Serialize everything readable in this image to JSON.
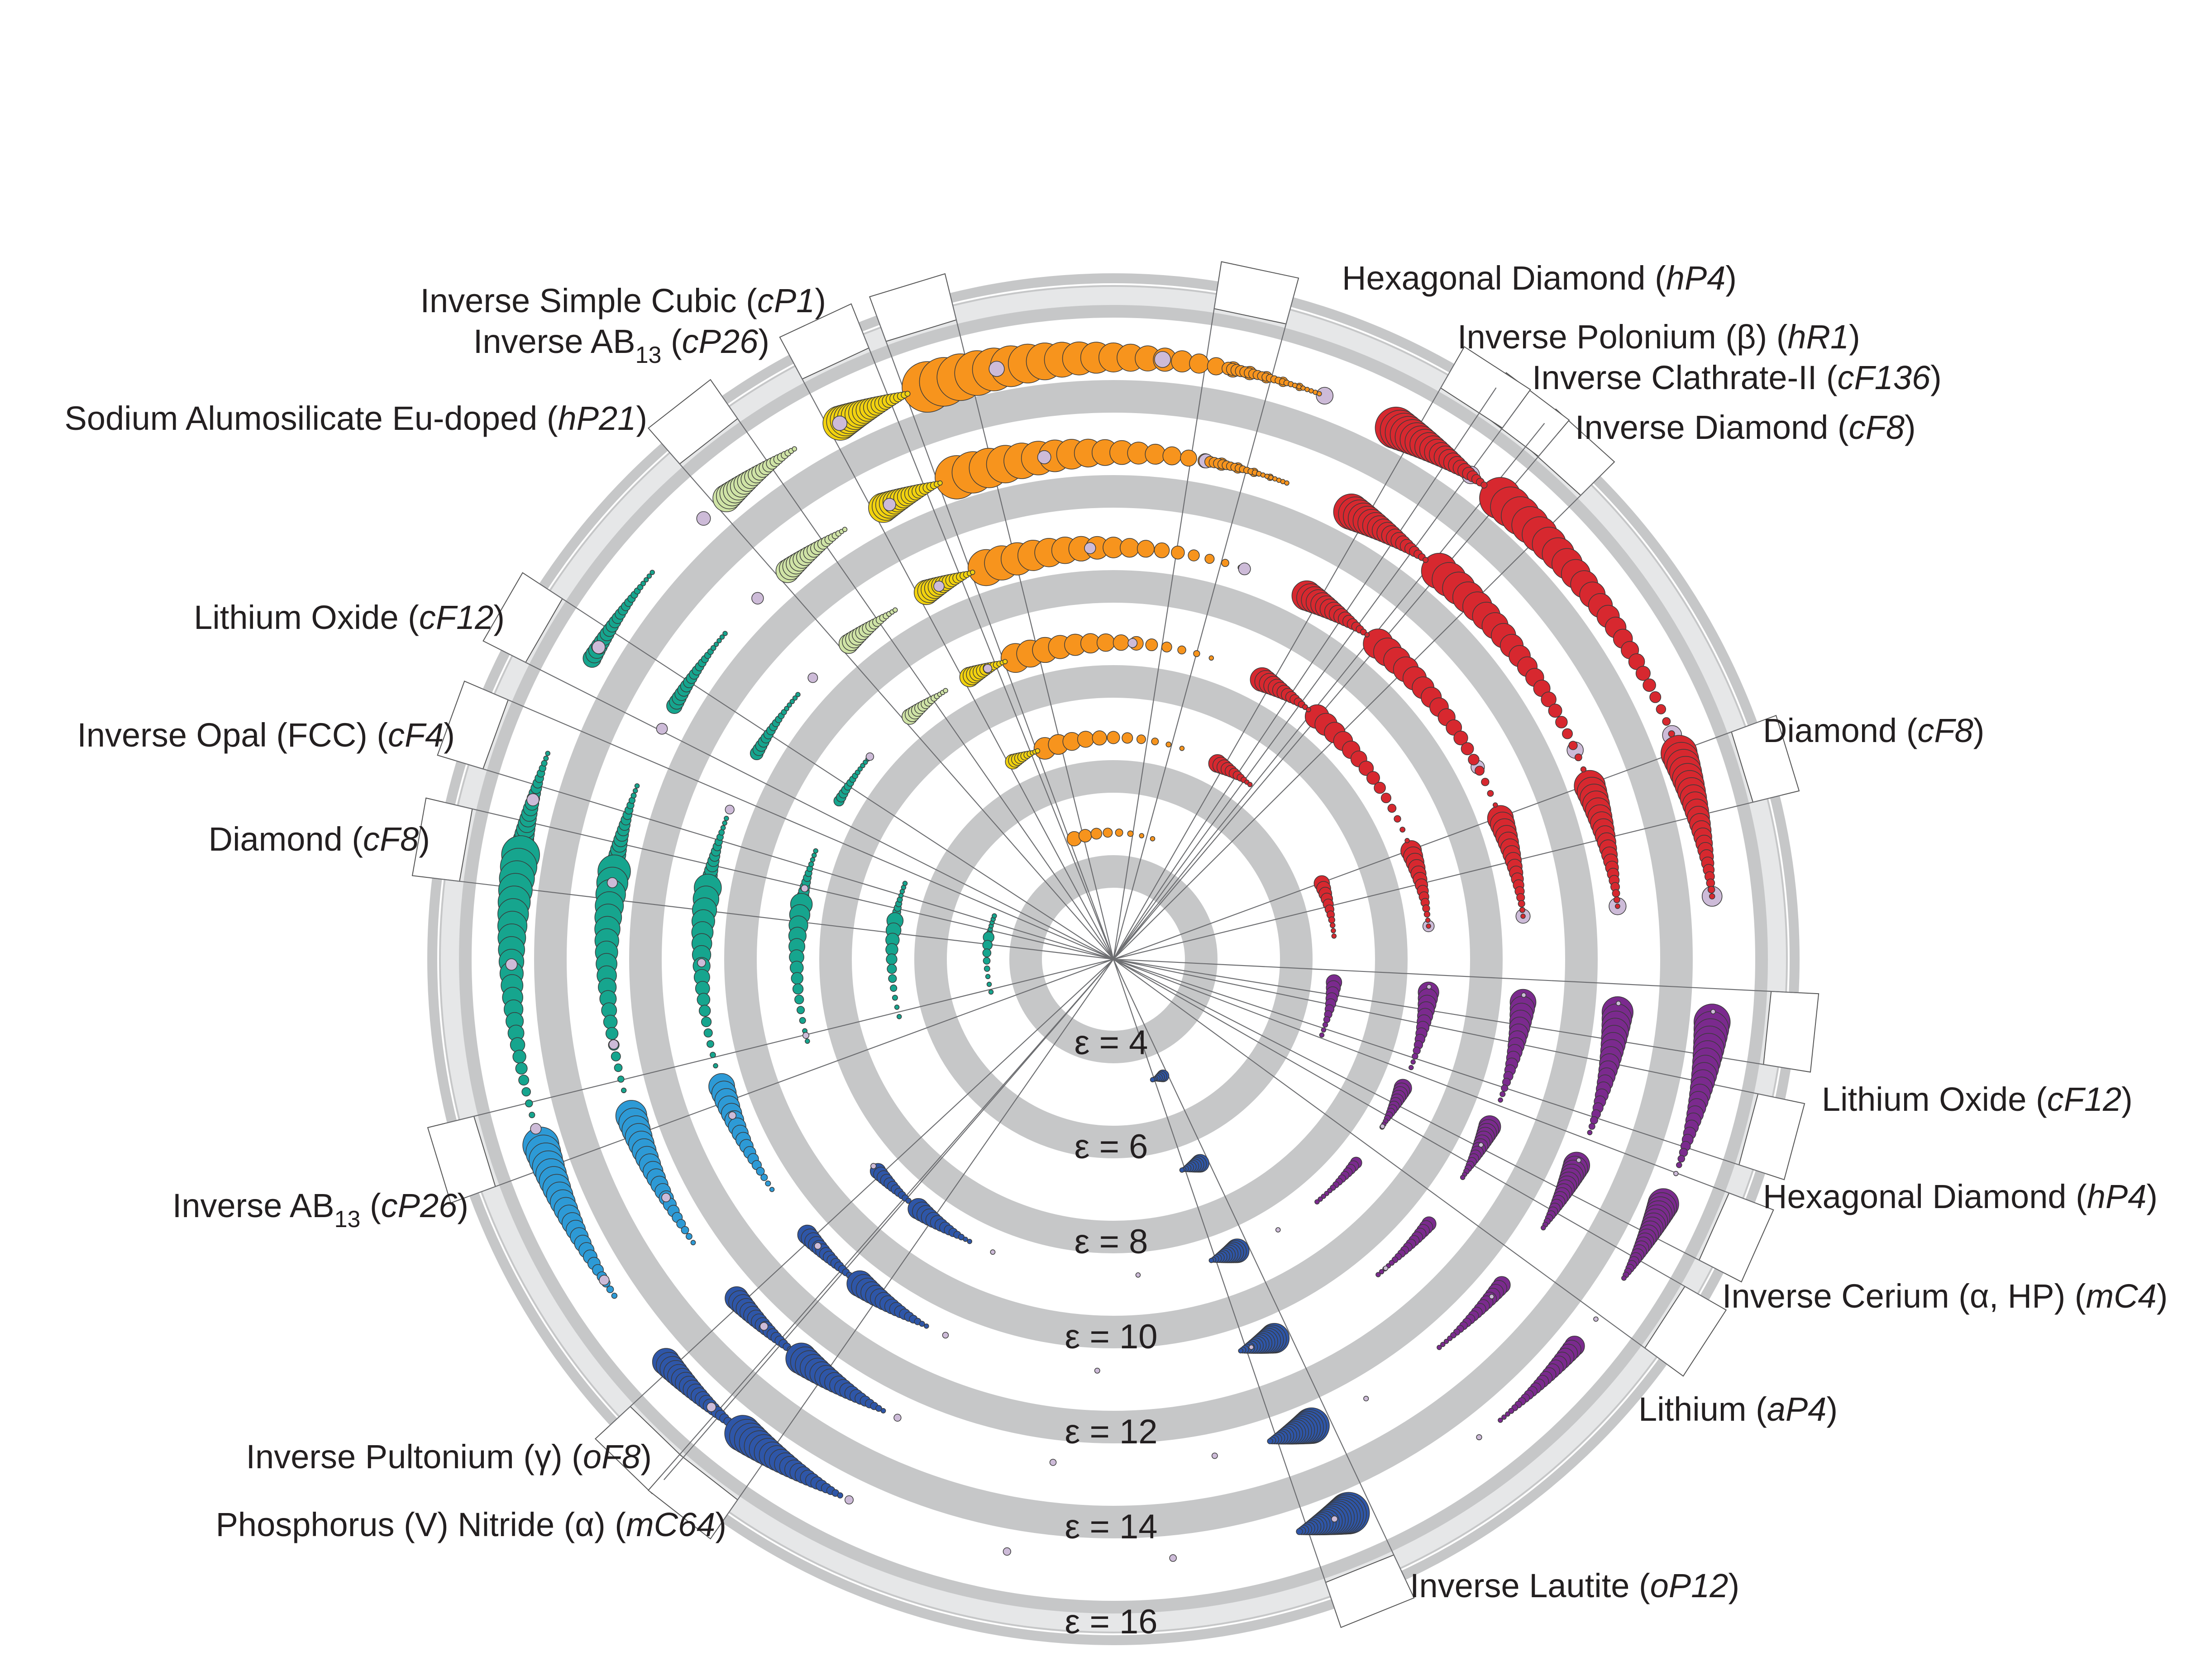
{
  "chart_data": {
    "type": "polar-bubble",
    "rings": [
      {
        "label": "ε = 4",
        "epsilon": 4
      },
      {
        "label": "ε = 6",
        "epsilon": 6
      },
      {
        "label": "ε = 8",
        "epsilon": 8
      },
      {
        "label": "ε = 10",
        "epsilon": 10
      },
      {
        "label": "ε = 12",
        "epsilon": 12
      },
      {
        "label": "ε = 14",
        "epsilon": 14
      },
      {
        "label": "ε = 16",
        "epsilon": 16
      }
    ],
    "families": [
      {
        "name": "orange",
        "color": "#f7941d"
      },
      {
        "name": "yellow",
        "color": "#f2d20f"
      },
      {
        "name": "pale-green",
        "color": "#cfe3a6"
      },
      {
        "name": "red",
        "color": "#d7282f"
      },
      {
        "name": "lavender",
        "color": "#cdbbd8"
      },
      {
        "name": "purple",
        "color": "#7b2a8e"
      },
      {
        "name": "teal",
        "color": "#16a58e"
      },
      {
        "name": "light-blue",
        "color": "#2d9ad6"
      },
      {
        "name": "dark-blue",
        "color": "#2e56a8"
      }
    ],
    "sectors": [
      {
        "label": {
          "pre": "Inverse Simple Cubic (",
          "it": "cP1",
          "post": ")"
        },
        "color": "#f7941d"
      },
      {
        "label": {
          "pre": "Inverse AB",
          "sub": "13",
          "mid": " (",
          "it": "cP26",
          "post": ")"
        },
        "color": "#f2d20f"
      },
      {
        "label": {
          "pre": "Sodium Alumosilicate Eu-doped (",
          "it": "hP21",
          "post": ")"
        },
        "color": "#cfe3a6"
      },
      {
        "label": {
          "pre": "Lithium Oxide (",
          "it": "cF12",
          "post": ")"
        },
        "color": "#16a58e"
      },
      {
        "label": {
          "pre": "Inverse Opal (FCC) (",
          "it": "cF4",
          "post": ")"
        },
        "color": "#16a58e"
      },
      {
        "label": {
          "pre": "Diamond (",
          "it": "cF8",
          "post": ")"
        },
        "color": "#16a58e"
      },
      {
        "label": {
          "pre": "Inverse AB",
          "sub": "13",
          "mid": " (",
          "it": "cP26",
          "post": ")"
        },
        "color": "#2d9ad6"
      },
      {
        "label": {
          "pre": "Inverse Pultonium (γ) (",
          "it": "oF8",
          "post": ")"
        },
        "color": "#2e56a8"
      },
      {
        "label": {
          "pre": "Phosphorus (V) Nitride (α) (",
          "it": "mC64",
          "post": ")"
        },
        "color": "#2e56a8"
      },
      {
        "label": {
          "pre": "Inverse Lautite (",
          "it": "oP12",
          "post": ")"
        },
        "color": "#2e56a8"
      },
      {
        "label": {
          "pre": "Lithium (",
          "it": "aP4",
          "post": ")"
        },
        "color": "#7b2a8e"
      },
      {
        "label": {
          "pre": "Inverse Cerium (α, HP) (",
          "it": "mC4",
          "post": ")"
        },
        "color": "#7b2a8e"
      },
      {
        "label": {
          "pre": "Hexagonal Diamond (",
          "it": "hP4",
          "post": ")"
        },
        "color": "#7b2a8e"
      },
      {
        "label": {
          "pre": "Lithium Oxide (",
          "it": "cF12",
          "post": ")"
        },
        "color": "#cdbbd8"
      },
      {
        "label": {
          "pre": "Diamond (",
          "it": "cF8",
          "post": ")"
        },
        "color": "#d7282f"
      },
      {
        "label": {
          "pre": "Inverse Diamond (",
          "it": "cF8",
          "post": ")"
        },
        "color": "#d7282f"
      },
      {
        "label": {
          "pre": "Inverse Clathrate-II (",
          "it": "cF136",
          "post": ")"
        },
        "color": "#d7282f"
      },
      {
        "label": {
          "pre": "Inverse Polonium (β) (",
          "it": "hR1",
          "post": ")"
        },
        "color": "#d7282f"
      },
      {
        "label": {
          "pre": "Hexagonal Diamond (",
          "it": "hP4",
          "post": ")"
        },
        "color": "#f7941d"
      }
    ]
  }
}
